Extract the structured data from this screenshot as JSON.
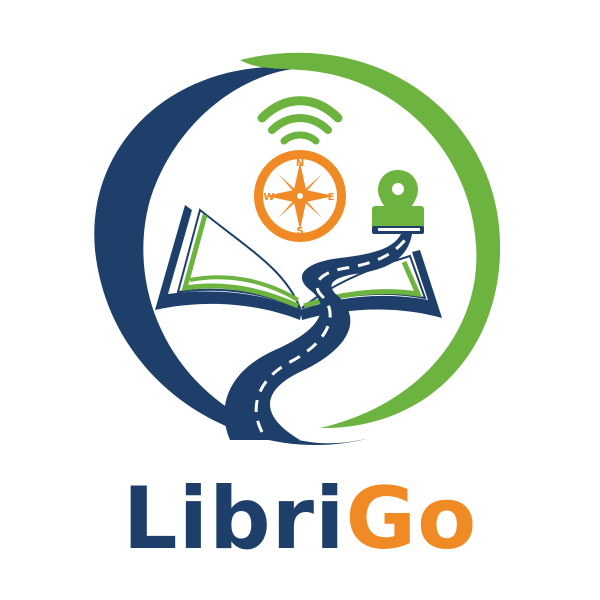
{
  "brand": {
    "name_part1": "Libri",
    "name_part2": "Go",
    "colors": {
      "navy": "#1f3f6b",
      "green": "#6cb33f",
      "orange": "#f08a24",
      "white": "#ffffff"
    }
  },
  "compass": {
    "north": "N",
    "south": "S",
    "east": "E",
    "west": "W"
  },
  "icons": [
    "wifi-signal-icon",
    "compass-icon",
    "open-book-icon",
    "winding-road-icon",
    "map-pin-icon",
    "small-book-icon"
  ]
}
